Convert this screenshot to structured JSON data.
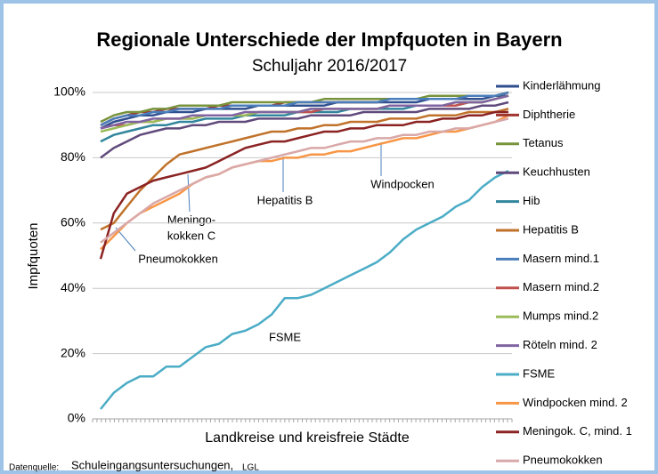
{
  "chart_data": {
    "type": "line",
    "title": "Regionale Unterschiede der Impfquoten in Bayern",
    "subtitle": "Schuljahr 2016/2017",
    "ylabel": "Impfquoten",
    "xlabel": "Landkreise und kreisfreie Städte",
    "ylim": [
      0,
      100
    ],
    "yticks": [
      {
        "value": 0,
        "label": "0%"
      },
      {
        "value": 20,
        "label": "20%"
      },
      {
        "value": 40,
        "label": "40%"
      },
      {
        "value": 60,
        "label": "60%"
      },
      {
        "value": 80,
        "label": "80%"
      },
      {
        "value": 100,
        "label": "100%"
      }
    ],
    "grid": true,
    "legend": "right",
    "categories": [
      null,
      null,
      null,
      null,
      null,
      null,
      null,
      null,
      null,
      null,
      null,
      null,
      null,
      null,
      null,
      null,
      null,
      null,
      null,
      null,
      null,
      null,
      null,
      null,
      null,
      null,
      null,
      null,
      null,
      null,
      null,
      null
    ],
    "series": [
      {
        "name": "Kinderlähmung",
        "color": "#2f4f8f",
        "values": [
          89,
          91,
          92,
          93,
          93,
          94,
          94,
          94,
          95,
          95,
          95,
          95,
          96,
          96,
          96,
          96,
          96,
          96,
          97,
          97,
          97,
          97,
          97,
          97,
          97,
          98,
          98,
          98,
          98,
          98,
          99,
          99
        ]
      },
      {
        "name": "Diphtherie",
        "color": "#a0352f",
        "values": [
          90,
          92,
          93,
          94,
          94,
          95,
          95,
          95,
          95,
          96,
          96,
          96,
          96,
          96,
          97,
          97,
          97,
          97,
          97,
          97,
          97,
          97,
          98,
          98,
          98,
          98,
          98,
          98,
          99,
          99,
          99,
          100
        ]
      },
      {
        "name": "Tetanus",
        "color": "#77933c",
        "values": [
          91,
          93,
          94,
          94,
          95,
          95,
          96,
          96,
          96,
          96,
          97,
          97,
          97,
          97,
          97,
          97,
          97,
          98,
          98,
          98,
          98,
          98,
          98,
          98,
          98,
          99,
          99,
          99,
          99,
          99,
          99,
          100
        ]
      },
      {
        "name": "Keuchhusten",
        "color": "#604a7b",
        "values": [
          80,
          83,
          85,
          87,
          88,
          89,
          89,
          90,
          90,
          91,
          91,
          91,
          92,
          92,
          92,
          92,
          93,
          93,
          93,
          93,
          94,
          94,
          94,
          94,
          94,
          95,
          95,
          95,
          95,
          96,
          96,
          97
        ]
      },
      {
        "name": "Hib",
        "color": "#31859c",
        "values": [
          85,
          87,
          88,
          89,
          90,
          90,
          91,
          91,
          92,
          92,
          92,
          93,
          93,
          93,
          93,
          94,
          94,
          94,
          94,
          95,
          95,
          95,
          95,
          95,
          96,
          96,
          96,
          96,
          97,
          97,
          98,
          99
        ]
      },
      {
        "name": "Hepatitis B",
        "color": "#c0722a",
        "values": [
          58,
          60,
          65,
          70,
          74,
          78,
          81,
          82,
          83,
          84,
          85,
          86,
          87,
          88,
          88,
          89,
          89,
          90,
          90,
          91,
          91,
          91,
          92,
          92,
          92,
          93,
          93,
          93,
          94,
          94,
          94,
          95
        ]
      },
      {
        "name": "Masern mind.1",
        "color": "#4a7ebb",
        "values": [
          90,
          92,
          93,
          93,
          94,
          94,
          95,
          95,
          95,
          95,
          96,
          96,
          96,
          96,
          96,
          97,
          97,
          97,
          97,
          97,
          97,
          97,
          98,
          98,
          98,
          98,
          98,
          98,
          99,
          99,
          99,
          100
        ]
      },
      {
        "name": "Masern mind.2",
        "color": "#c0504d",
        "values": [
          89,
          90,
          90,
          91,
          91,
          92,
          92,
          92,
          93,
          93,
          93,
          93,
          94,
          94,
          94,
          94,
          94,
          95,
          95,
          95,
          95,
          95,
          96,
          96,
          96,
          96,
          96,
          96,
          97,
          97,
          98,
          99
        ]
      },
      {
        "name": "Mumps mind.2",
        "color": "#9bbb59",
        "values": [
          88,
          89,
          90,
          91,
          91,
          92,
          92,
          92,
          93,
          93,
          93,
          93,
          94,
          94,
          94,
          94,
          95,
          95,
          95,
          95,
          95,
          95,
          96,
          96,
          96,
          96,
          96,
          97,
          97,
          97,
          98,
          99
        ]
      },
      {
        "name": "Röteln mind. 2",
        "color": "#8064a2",
        "values": [
          89,
          90,
          91,
          91,
          92,
          92,
          92,
          93,
          93,
          93,
          93,
          94,
          94,
          94,
          94,
          94,
          95,
          95,
          95,
          95,
          95,
          95,
          96,
          96,
          96,
          96,
          96,
          97,
          97,
          97,
          98,
          99
        ]
      },
      {
        "name": "FSME",
        "color": "#4bacc6",
        "values": [
          3,
          8,
          11,
          13,
          13,
          16,
          16,
          19,
          22,
          23,
          26,
          27,
          29,
          32,
          37,
          37,
          38,
          40,
          42,
          44,
          46,
          48,
          51,
          55,
          58,
          60,
          62,
          65,
          67,
          71,
          74,
          76
        ]
      },
      {
        "name": "Windpocken mind. 2",
        "color": "#f79646",
        "values": [
          52,
          56,
          60,
          63,
          65,
          67,
          69,
          72,
          74,
          75,
          77,
          78,
          79,
          79,
          80,
          80,
          81,
          81,
          82,
          82,
          83,
          84,
          85,
          86,
          86,
          87,
          88,
          88,
          89,
          90,
          91,
          93
        ]
      },
      {
        "name": "Meningok. C, mind. 1",
        "color": "#8b2323",
        "values": [
          49,
          63,
          69,
          71,
          73,
          74,
          75,
          76,
          77,
          79,
          81,
          83,
          84,
          85,
          85,
          86,
          87,
          88,
          88,
          89,
          89,
          90,
          90,
          90,
          91,
          91,
          92,
          92,
          93,
          93,
          94,
          94
        ]
      },
      {
        "name": "Pneumokokken",
        "color": "#d9a8a8",
        "values": [
          54,
          57,
          60,
          63,
          66,
          68,
          70,
          72,
          74,
          75,
          77,
          78,
          79,
          80,
          81,
          82,
          83,
          83,
          84,
          85,
          85,
          86,
          86,
          87,
          87,
          88,
          88,
          89,
          89,
          90,
          91,
          92
        ]
      }
    ],
    "annotations": {
      "hepatitis": "Hepatitis B",
      "windpocken": "Windpocken",
      "meningo": [
        "Meningo-",
        "kokken C"
      ],
      "pneumo": "Pneumokokken",
      "fsme": "FSME"
    },
    "source": {
      "label": "Datenquelle:",
      "text": "Schuleingangsuntersuchungen,",
      "org": "LGL"
    }
  }
}
